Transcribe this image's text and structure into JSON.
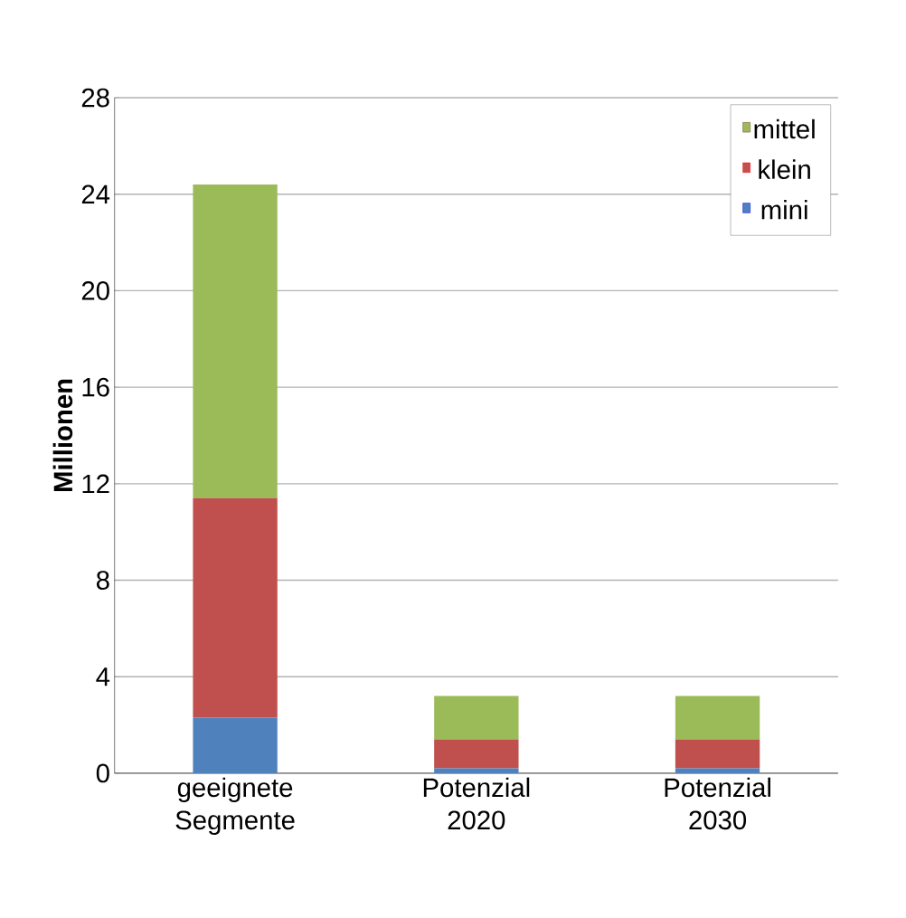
{
  "chart_data": {
    "type": "bar",
    "stacked": true,
    "ylabel": "Millionen",
    "categories": [
      "geeignete Segmente",
      "Potenzial 2020",
      "Potenzial 2030"
    ],
    "series": [
      {
        "name": "mini",
        "color": "#4f81bd",
        "values": [
          2.3,
          0.2,
          0.2
        ]
      },
      {
        "name": "klein",
        "color": "#c0504d",
        "values": [
          9.1,
          1.2,
          1.2
        ]
      },
      {
        "name": "mittel",
        "color": "#9bbb59",
        "values": [
          13.0,
          1.8,
          1.8
        ]
      }
    ],
    "ylim": [
      0,
      28
    ],
    "yticks": [
      0,
      4,
      8,
      12,
      16,
      20,
      24,
      28
    ],
    "grid": "y",
    "legend": "top right"
  }
}
